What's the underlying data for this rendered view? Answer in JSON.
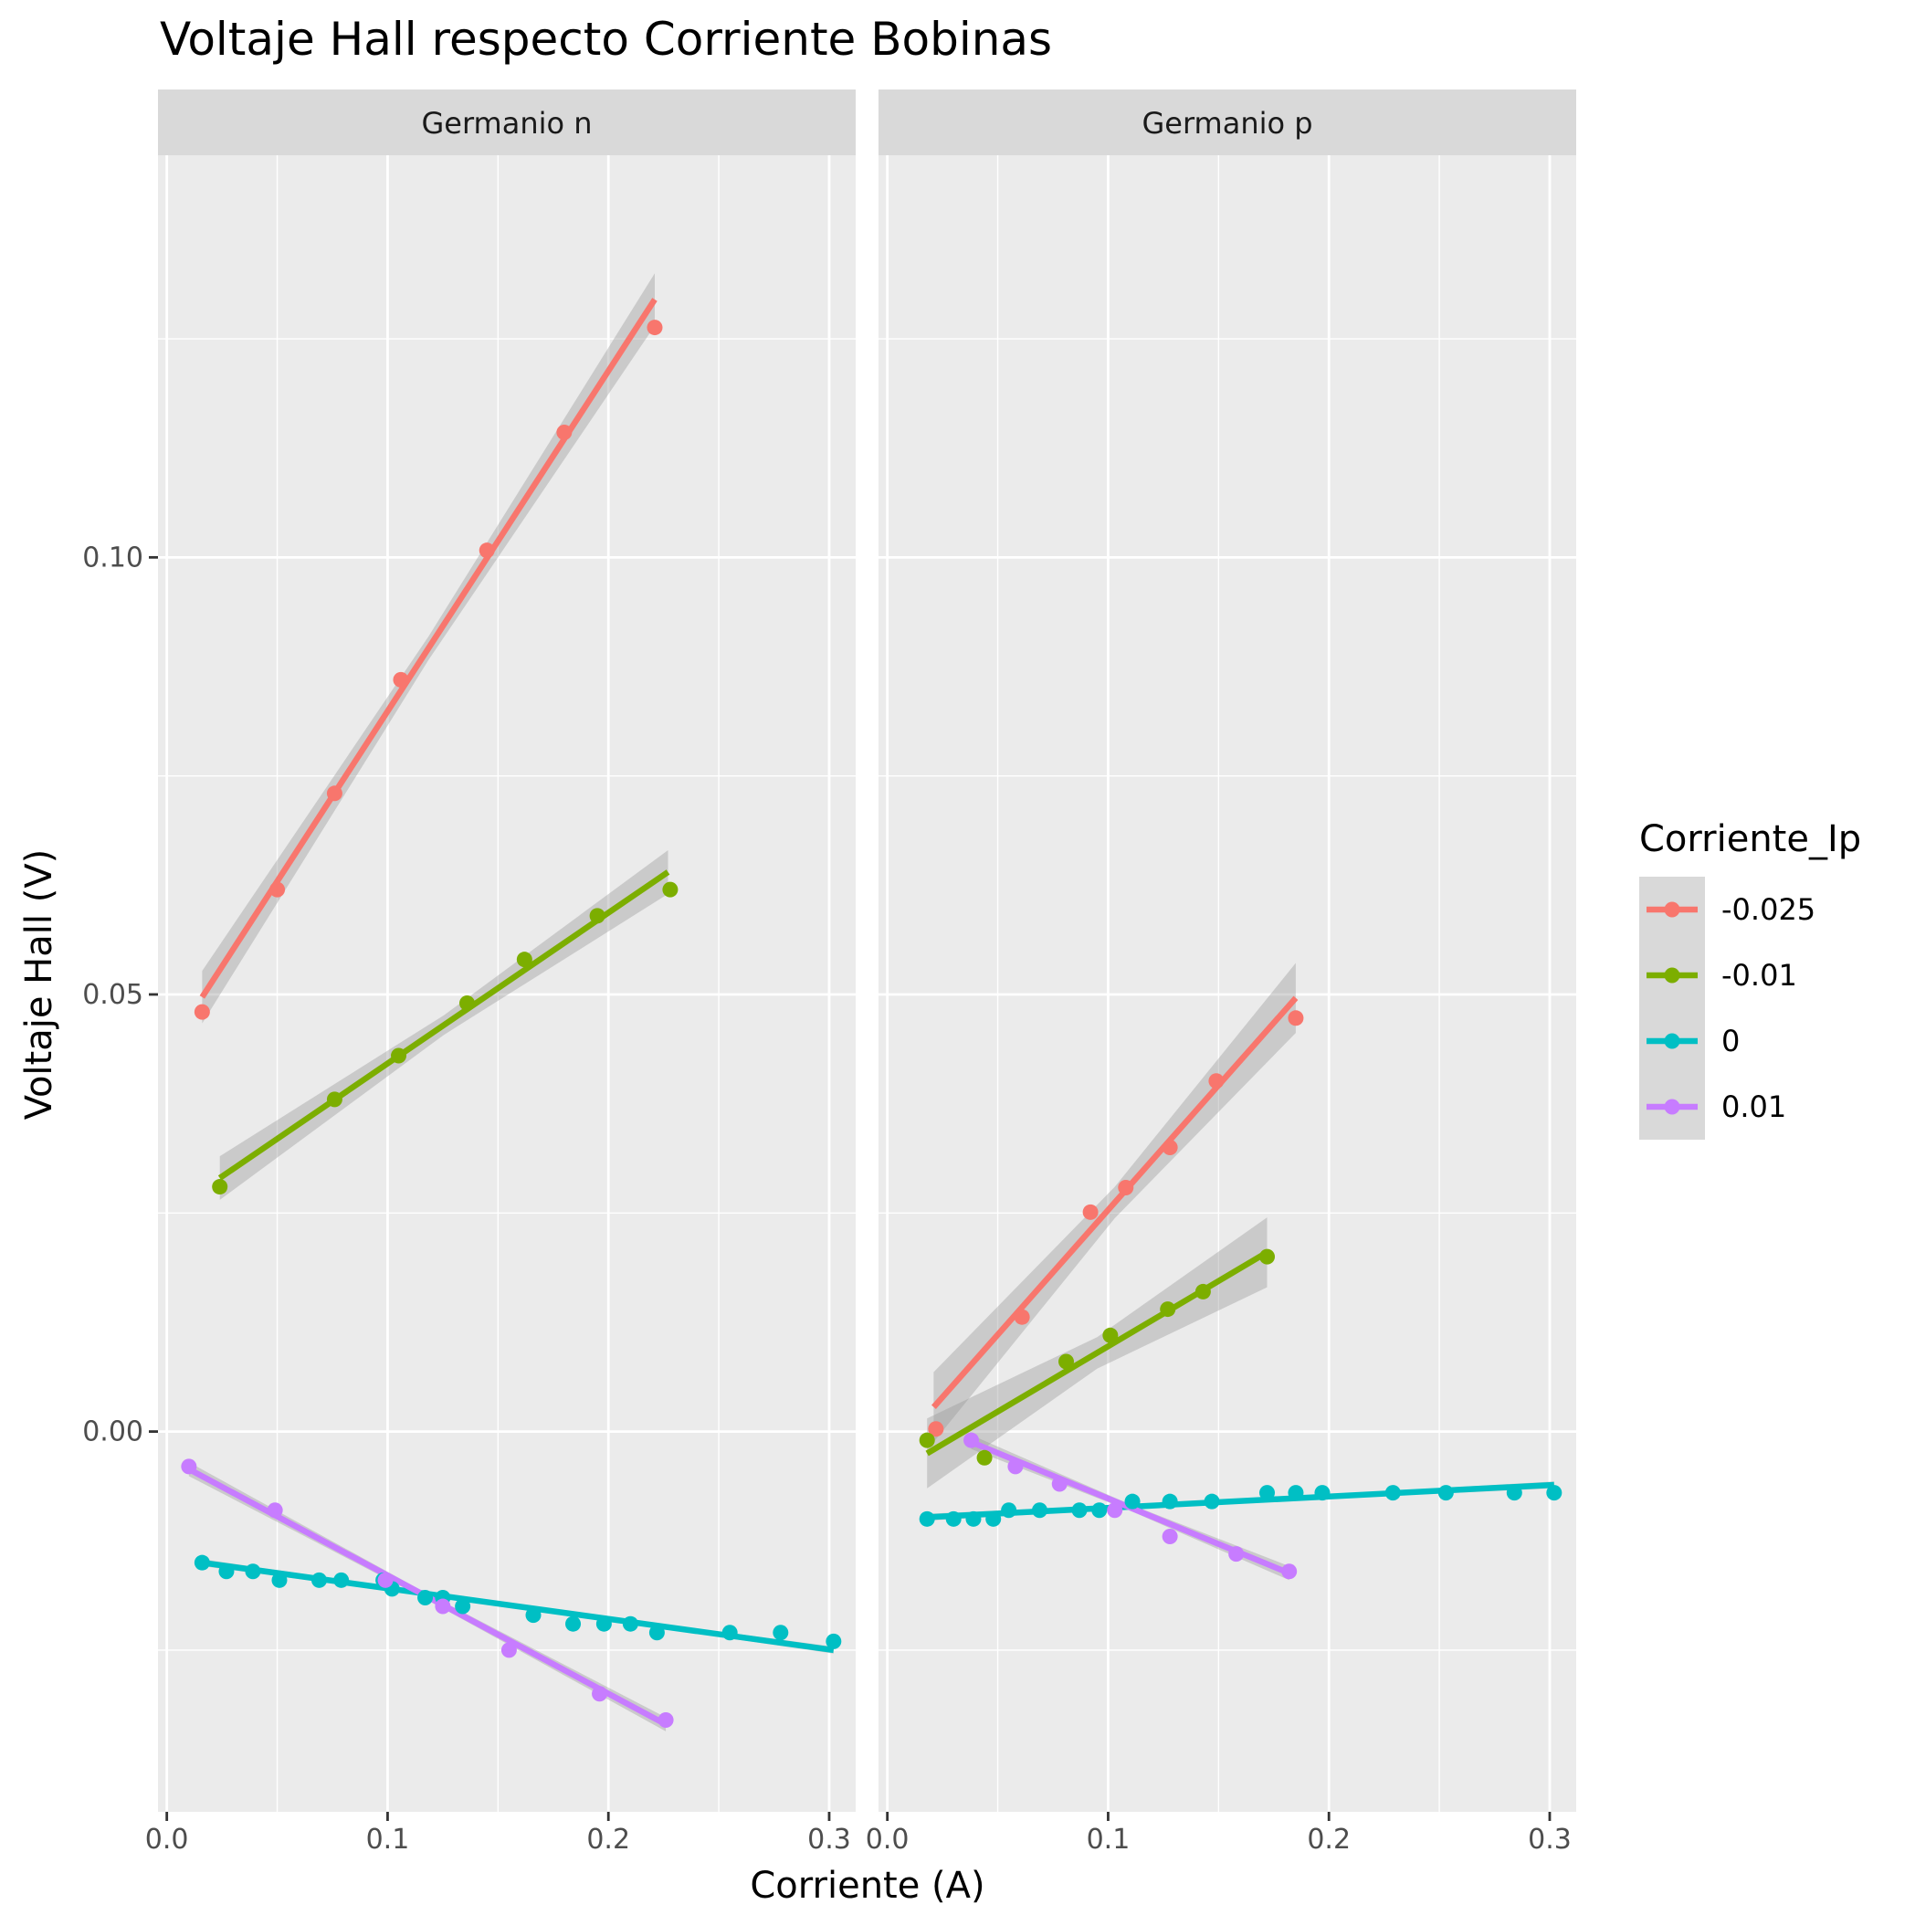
{
  "chart_data": {
    "type": "scatter",
    "title": "Voltaje Hall respecto Corriente Bobinas",
    "xlabel": "Corriente (A)",
    "ylabel": "Voltaje Hall (V)",
    "xlim": [
      -0.004,
      0.312
    ],
    "ylim": [
      -0.0435,
      0.146
    ],
    "x_ticks": [
      0.0,
      0.1,
      0.2,
      0.3
    ],
    "x_tick_labels": [
      "0.0",
      "0.1",
      "0.2",
      "0.3"
    ],
    "y_ticks": [
      0.0,
      0.05,
      0.1
    ],
    "y_tick_labels": [
      "0.00",
      "0.05",
      "0.10"
    ],
    "grid": true,
    "legend": {
      "title": "Corriente_Ip",
      "position": "right",
      "entries": [
        "-0.025",
        "-0.01",
        "0",
        "0.01"
      ]
    },
    "colors": {
      "-0.025": "#F8766D",
      "-0.01": "#7CAE00",
      "0": "#00BFC4",
      "0.01": "#C77CFF"
    },
    "panels": [
      {
        "label": "Germanio n",
        "series": [
          {
            "name": "-0.025",
            "x": [
              0.016,
              0.05,
              0.076,
              0.106,
              0.145,
              0.18,
              0.221
            ],
            "y": [
              0.048,
              0.062,
              0.073,
              0.086,
              0.1008,
              0.1143,
              0.1263
            ],
            "fit": [
              [
                0.016,
                0.0497
              ],
              [
                0.221,
                0.1295
              ]
            ],
            "band": 0.003
          },
          {
            "name": "-0.01",
            "x": [
              0.024,
              0.076,
              0.105,
              0.136,
              0.162,
              0.195,
              0.228
            ],
            "y": [
              0.028,
              0.038,
              0.043,
              0.049,
              0.054,
              0.059,
              0.062
            ],
            "fit": [
              [
                0.024,
                0.029
              ],
              [
                0.227,
                0.064
              ]
            ],
            "band": 0.0025
          },
          {
            "name": "0",
            "x": [
              0.016,
              0.027,
              0.039,
              0.051,
              0.069,
              0.079,
              0.098,
              0.102,
              0.117,
              0.125,
              0.134,
              0.166,
              0.184,
              0.198,
              0.21,
              0.222,
              0.255,
              0.278,
              0.302
            ],
            "y": [
              -0.015,
              -0.016,
              -0.016,
              -0.017,
              -0.017,
              -0.017,
              -0.017,
              -0.018,
              -0.019,
              -0.019,
              -0.02,
              -0.021,
              -0.022,
              -0.022,
              -0.022,
              -0.023,
              -0.023,
              -0.023,
              -0.024
            ],
            "fit": [
              [
                0.016,
                -0.015
              ],
              [
                0.302,
                -0.025
              ]
            ],
            "band": 0.0004
          },
          {
            "name": "0.01",
            "x": [
              0.01,
              0.049,
              0.099,
              0.125,
              0.155,
              0.196,
              0.226
            ],
            "y": [
              -0.004,
              -0.009,
              -0.017,
              -0.02,
              -0.025,
              -0.03,
              -0.033
            ],
            "fit": [
              [
                0.01,
                -0.0043
              ],
              [
                0.226,
                -0.0335
              ]
            ],
            "band": 0.0008
          }
        ]
      },
      {
        "label": "Germanio p",
        "series": [
          {
            "name": "-0.025",
            "x": [
              0.022,
              0.061,
              0.092,
              0.108,
              0.128,
              0.149,
              0.185
            ],
            "y": [
              0.0003,
              0.0131,
              0.0251,
              0.0279,
              0.0325,
              0.0401,
              0.0473
            ],
            "fit": [
              [
                0.021,
                0.0028
              ],
              [
                0.185,
                0.0496
              ]
            ],
            "band": 0.004
          },
          {
            "name": "-0.01",
            "x": [
              0.018,
              0.044,
              0.081,
              0.101,
              0.127,
              0.143,
              0.172
            ],
            "y": [
              -0.001,
              -0.003,
              0.008,
              0.011,
              0.014,
              0.016,
              0.02
            ],
            "fit": [
              [
                0.018,
                -0.0025
              ],
              [
                0.172,
                0.0205
              ]
            ],
            "band": 0.004
          },
          {
            "name": "0",
            "x": [
              0.018,
              0.03,
              0.039,
              0.048,
              0.055,
              0.069,
              0.087,
              0.096,
              0.111,
              0.128,
              0.147,
              0.172,
              0.185,
              0.197,
              0.229,
              0.253,
              0.284,
              0.302
            ],
            "y": [
              -0.01,
              -0.01,
              -0.01,
              -0.01,
              -0.009,
              -0.009,
              -0.009,
              -0.009,
              -0.008,
              -0.008,
              -0.008,
              -0.007,
              -0.007,
              -0.007,
              -0.007,
              -0.007,
              -0.007,
              -0.007
            ],
            "fit": [
              [
                0.018,
                -0.0098
              ],
              [
                0.302,
                -0.0061
              ]
            ],
            "band": 0.0004
          },
          {
            "name": "0.01",
            "x": [
              0.038,
              0.058,
              0.078,
              0.103,
              0.128,
              0.158,
              0.182
            ],
            "y": [
              -0.001,
              -0.004,
              -0.006,
              -0.009,
              -0.012,
              -0.014,
              -0.016
            ],
            "fit": [
              [
                0.038,
                -0.0012
              ],
              [
                0.182,
                -0.0162
              ]
            ],
            "band": 0.0008
          }
        ]
      }
    ]
  }
}
